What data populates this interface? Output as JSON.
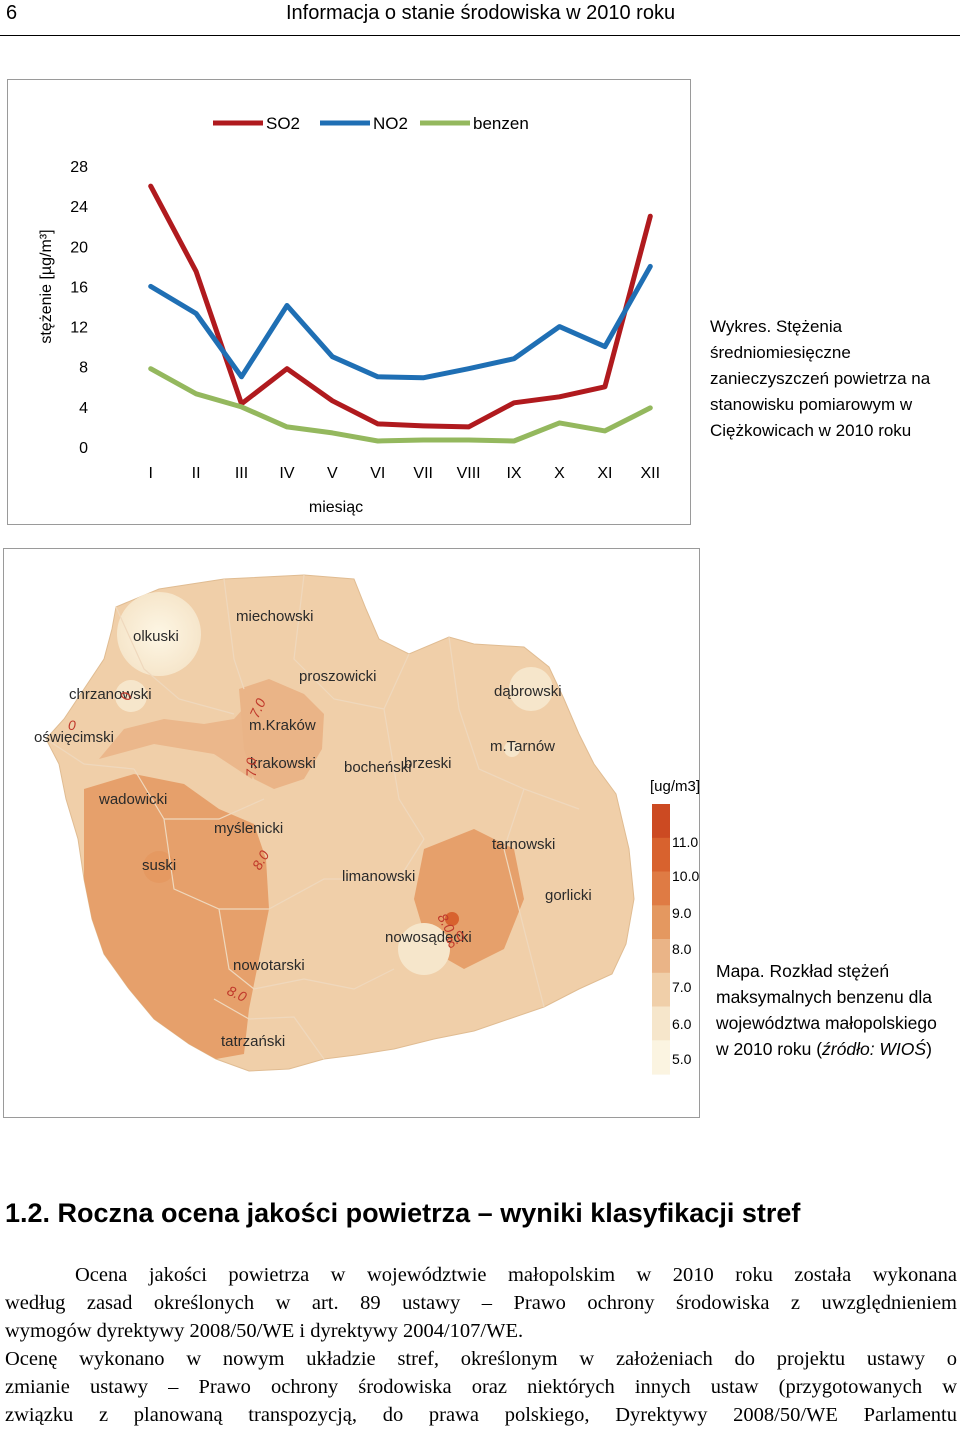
{
  "header": {
    "page_number": "6",
    "title": "Informacja o stanie środowiska w 2010 roku"
  },
  "chart_data": {
    "type": "line",
    "categories": [
      "I",
      "II",
      "III",
      "IV",
      "V",
      "VI",
      "VII",
      "VIII",
      "IX",
      "X",
      "XI",
      "XII"
    ],
    "series": [
      {
        "name": "SO2",
        "color": "#b01a1e",
        "values": [
          26.0,
          17.5,
          4.3,
          7.8,
          4.6,
          2.3,
          2.1,
          2.0,
          4.4,
          5.0,
          6.0,
          23.0
        ]
      },
      {
        "name": "NO2",
        "color": "#1f6fb4",
        "values": [
          16.0,
          13.3,
          7.0,
          14.1,
          9.0,
          7.0,
          6.9,
          7.8,
          8.8,
          12.0,
          10.0,
          18.0
        ]
      },
      {
        "name": "benzen",
        "color": "#94b85e",
        "values": [
          7.8,
          5.3,
          4.0,
          2.0,
          1.4,
          0.6,
          0.7,
          0.7,
          0.6,
          2.4,
          1.6,
          3.9
        ]
      }
    ],
    "y_ticks": [
      "0",
      "4",
      "8",
      "12",
      "16",
      "20",
      "24",
      "28"
    ],
    "ylim": [
      0,
      28
    ],
    "ylabel": "stężenie  [µg/m³]",
    "xlabel": "miesiąc",
    "legend_position": "top",
    "grid": false
  },
  "chart_caption": [
    "Wykres. Stężenia",
    "średniomiesięczne",
    "zanieczyszczeń powietrza na",
    "stanowisku pomiarowym w",
    "Ciężkowicach w 2010 roku"
  ],
  "map": {
    "districts": [
      "olkuski",
      "miechowski",
      "chrzanowski",
      "proszowicki",
      "dąbrowski",
      "oświęcimski",
      "m.Kraków",
      "krakowski",
      "bocheński",
      "brzeski",
      "m.Tarnów",
      "wadowicki",
      "myślenicki",
      "tarnowski",
      "suski",
      "limanowski",
      "gorlicki",
      "nowosądecki",
      "nowotarski",
      "tatrzański"
    ],
    "contour_labels": [
      "0",
      "0",
      "7.0",
      "7.0",
      "8.0",
      "8.0",
      "8.0",
      "8.0"
    ],
    "legend": {
      "unit": "[ug/m3]",
      "values": [
        "11.0",
        "10.0",
        "9.0",
        "8.0",
        "7.0",
        "6.0",
        "5.0"
      ],
      "colors": [
        "#cc4a22",
        "#d8622e",
        "#df7b44",
        "#e49860",
        "#eab487",
        "#f0cfa9",
        "#f6e6cb",
        "#fbf4e1"
      ]
    }
  },
  "map_caption": [
    "Mapa. Rozkład stężeń",
    "maksymalnych benzenu dla",
    "województwa małopolskiego"
  ],
  "map_caption_last": {
    "prefix": "w 2010 roku (",
    "italic": "źródło:  WIOŚ",
    "suffix": ")"
  },
  "section": {
    "heading": "1.2. Roczna ocena jakości powietrza – wyniki klasyfikacji stref",
    "para1": [
      "Ocena jakości powietrza w województwie małopolskim w 2010 roku została wykonana",
      "według zasad określonych w art. 89 ustawy – Prawo ochrony środowiska z uwzględnieniem",
      "wymogów dyrektywy 2008/50/WE i dyrektywy 2004/107/WE."
    ],
    "para2": [
      "Ocenę wykonano w nowym układzie stref, określonym w założeniach do projektu ustawy o",
      "zmianie ustawy – Prawo ochrony środowiska oraz niektórych innych ustaw (przygotowanych w",
      "związku z planowaną transpozycją, do prawa polskiego, Dyrektywy 2008/50/WE Parlamentu"
    ]
  }
}
